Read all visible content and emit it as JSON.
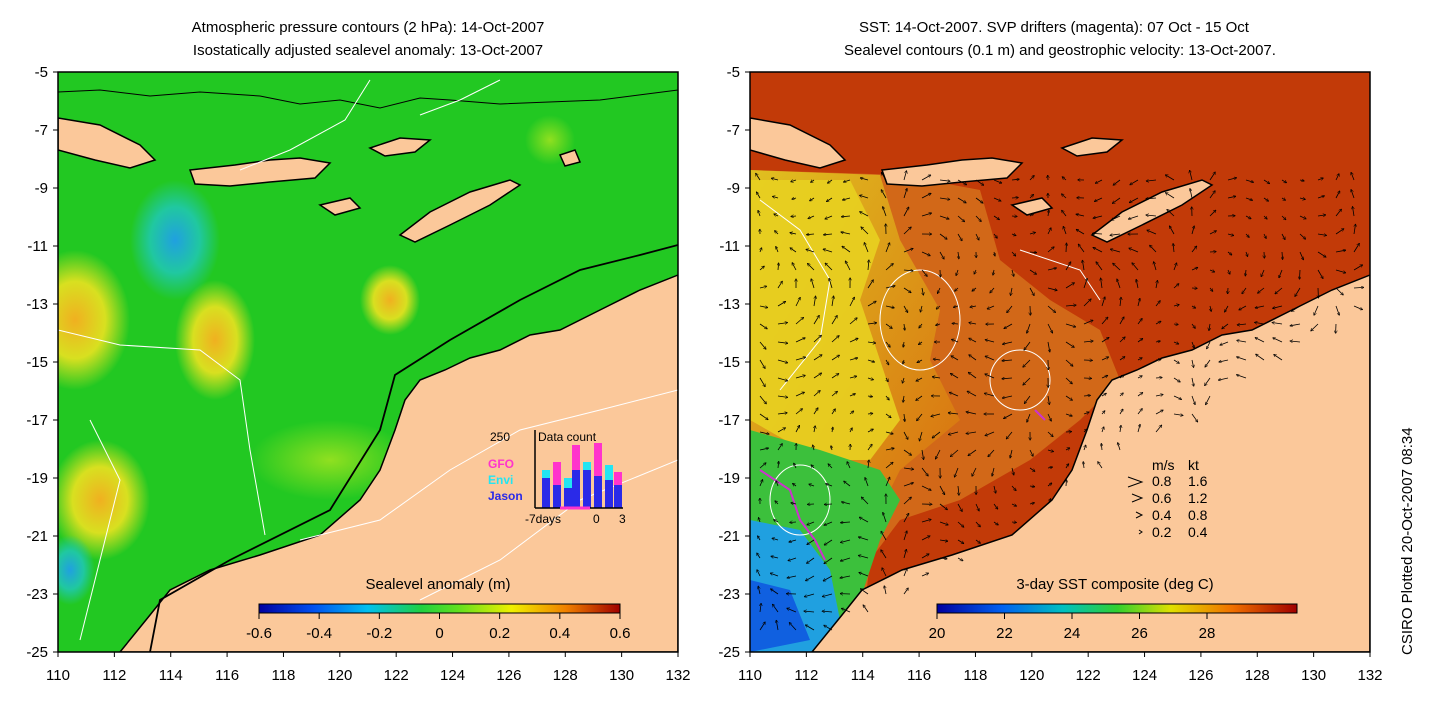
{
  "left_panel": {
    "title_line1": "Atmospheric pressure contours (2 hPa): 14-Oct-2007",
    "title_line2": "Isostatically adjusted sealevel anomaly: 13-Oct-2007",
    "colorbar": {
      "title": "Sealevel anomaly (m)",
      "tick_labels": [
        "-0.6",
        "-0.4",
        "-0.2",
        "0",
        "0.2",
        "0.4",
        "0.6"
      ]
    },
    "data_count": {
      "title": "Data count",
      "y_max_label": "250",
      "x_labels": [
        "-7days",
        "0",
        "3"
      ],
      "legend": [
        {
          "label": "GFO",
          "color": "#ff33cc"
        },
        {
          "label": "Envi",
          "color": "#22e5f2"
        },
        {
          "label": "Jason",
          "color": "#2a2ae8"
        }
      ]
    }
  },
  "right_panel": {
    "title_line1": "SST: 14-Oct-2007. SVP drifters (magenta): 07 Oct - 15 Oct",
    "title_line2": "Sealevel contours (0.1 m) and geostrophic velocity: 13-Oct-2007.",
    "colorbar": {
      "title": "3-day SST composite (deg C)",
      "tick_labels": [
        "20",
        "22",
        "24",
        "26",
        "28"
      ]
    },
    "velocity_legend": {
      "header_ms": "m/s",
      "header_kt": "kt",
      "rows": [
        {
          "ms": "0.8",
          "kt": "1.6"
        },
        {
          "ms": "0.6",
          "kt": "1.2"
        },
        {
          "ms": "0.4",
          "kt": "0.8"
        },
        {
          "ms": "0.2",
          "kt": "0.4"
        }
      ]
    }
  },
  "axes": {
    "y_labels": [
      "-5",
      "-7",
      "-9",
      "-11",
      "-13",
      "-15",
      "-17",
      "-19",
      "-21",
      "-23",
      "-25"
    ],
    "x_labels": [
      "110",
      "112",
      "114",
      "116",
      "118",
      "120",
      "122",
      "124",
      "126",
      "128",
      "130",
      "132"
    ]
  },
  "credit": "CSIRO Plotted 20-Oct-2007 08:34",
  "colors": {
    "land": "#fbc89a",
    "sla_background": "#22c822",
    "sst_background": "#c23a08",
    "contour": "#ffffff",
    "drifter": "#cc33cc"
  }
}
